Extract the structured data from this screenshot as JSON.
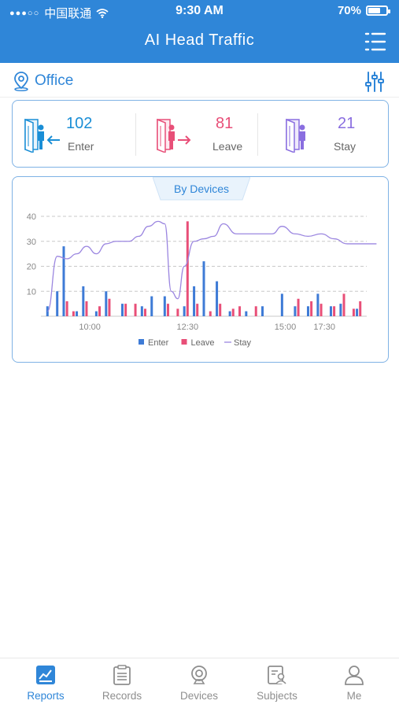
{
  "status_bar": {
    "carrier": "中国联通",
    "time": "9:30 AM",
    "battery": "70%",
    "battery_level": 0.7
  },
  "header": {
    "title": "AI Head Traffic"
  },
  "location": {
    "name": "Office"
  },
  "stats": [
    {
      "value": "102",
      "label": "Enter",
      "color": "#1a8ed6"
    },
    {
      "value": "81",
      "label": "Leave",
      "color": "#e84f78"
    },
    {
      "value": "21",
      "label": "Stay",
      "color": "#8a6ee0"
    }
  ],
  "chart": {
    "tab_label": "By Devices"
  },
  "chart_data": {
    "type": "bar",
    "ylim": [
      0,
      40
    ],
    "yticks": [
      10,
      20,
      30,
      40
    ],
    "xlim": [
      0,
      100
    ],
    "xticks": [
      {
        "x": 15,
        "label": "10:00"
      },
      {
        "x": 45,
        "label": "12:30"
      },
      {
        "x": 75,
        "label": "15:00"
      },
      {
        "x": 87,
        "label": "17:30"
      }
    ],
    "legend": [
      "Enter",
      "Leave",
      "Stay"
    ],
    "legend_position": "bottom",
    "colors": {
      "Enter": "#3e7bd6",
      "Leave": "#e84f78",
      "Stay": "#9b86e0"
    },
    "enter": [
      [
        2,
        4
      ],
      [
        5,
        10
      ],
      [
        7,
        28
      ],
      [
        11,
        2
      ],
      [
        13,
        12
      ],
      [
        17,
        2
      ],
      [
        20,
        10
      ],
      [
        25,
        5
      ],
      [
        31,
        4
      ],
      [
        34,
        8
      ],
      [
        38,
        8
      ],
      [
        44,
        4
      ],
      [
        47,
        12
      ],
      [
        50,
        22
      ],
      [
        54,
        14
      ],
      [
        58,
        2
      ],
      [
        63,
        2
      ],
      [
        68,
        4
      ],
      [
        74,
        9
      ],
      [
        78,
        4
      ],
      [
        82,
        4
      ],
      [
        85,
        9
      ],
      [
        89,
        4
      ],
      [
        92,
        5
      ],
      [
        97,
        3
      ]
    ],
    "leave": [
      [
        8,
        6
      ],
      [
        10,
        2
      ],
      [
        14,
        6
      ],
      [
        18,
        4
      ],
      [
        21,
        7
      ],
      [
        26,
        5
      ],
      [
        29,
        5
      ],
      [
        32,
        3
      ],
      [
        39,
        5
      ],
      [
        42,
        3
      ],
      [
        45,
        38
      ],
      [
        48,
        5
      ],
      [
        52,
        2
      ],
      [
        55,
        5
      ],
      [
        59,
        3
      ],
      [
        61,
        4
      ],
      [
        66,
        4
      ],
      [
        79,
        7
      ],
      [
        83,
        6
      ],
      [
        86,
        5
      ],
      [
        90,
        4
      ],
      [
        93,
        9
      ],
      [
        96,
        3
      ],
      [
        98,
        6
      ]
    ],
    "stay": [
      [
        2,
        2
      ],
      [
        5,
        24
      ],
      [
        8,
        23
      ],
      [
        11,
        25
      ],
      [
        14,
        28
      ],
      [
        17,
        25
      ],
      [
        20,
        29
      ],
      [
        23,
        30
      ],
      [
        27,
        30
      ],
      [
        30,
        32
      ],
      [
        33,
        36
      ],
      [
        36,
        38
      ],
      [
        38,
        37
      ],
      [
        40,
        10
      ],
      [
        42,
        7
      ],
      [
        44,
        20
      ],
      [
        47,
        30
      ],
      [
        50,
        31
      ],
      [
        53,
        32
      ],
      [
        56,
        37
      ],
      [
        60,
        33
      ],
      [
        64,
        33
      ],
      [
        68,
        33
      ],
      [
        71,
        33
      ],
      [
        74,
        36
      ],
      [
        78,
        33
      ],
      [
        82,
        32
      ],
      [
        86,
        33
      ],
      [
        90,
        31
      ],
      [
        94,
        29
      ],
      [
        98,
        29
      ],
      [
        103,
        29
      ]
    ]
  },
  "bottom_nav": [
    {
      "label": "Reports",
      "icon": "reports-icon",
      "active": true
    },
    {
      "label": "Records",
      "icon": "records-icon",
      "active": false
    },
    {
      "label": "Devices",
      "icon": "camera-icon",
      "active": false
    },
    {
      "label": "Subjects",
      "icon": "subjects-icon",
      "active": false
    },
    {
      "label": "Me",
      "icon": "user-icon",
      "active": false
    }
  ]
}
